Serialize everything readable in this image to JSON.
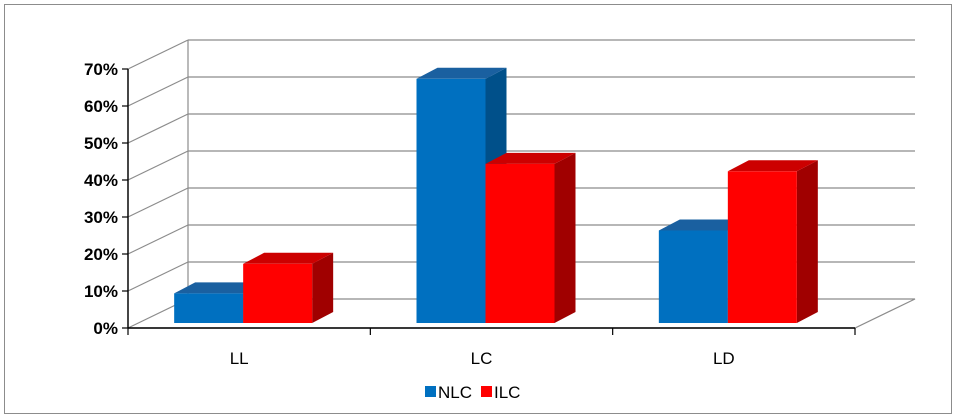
{
  "chart_data": {
    "type": "bar",
    "title": "",
    "xlabel": "",
    "ylabel": "",
    "categories": [
      "LL",
      "LC",
      "LD"
    ],
    "series": [
      {
        "name": "NLC",
        "values": [
          8,
          66,
          25
        ],
        "color": "#0070c0",
        "side_color": "#00508a",
        "top_color": "#1a60a0"
      },
      {
        "name": "ILC",
        "values": [
          16,
          43,
          41
        ],
        "color": "#ff0000",
        "side_color": "#a00000",
        "top_color": "#cc0000"
      }
    ],
    "ylim": [
      0,
      70
    ],
    "y_ticks": [
      "0%",
      "10%",
      "20%",
      "30%",
      "40%",
      "50%",
      "60%",
      "70%"
    ],
    "grid": true,
    "legend_position": "bottom",
    "style": "3d-clustered-column"
  }
}
